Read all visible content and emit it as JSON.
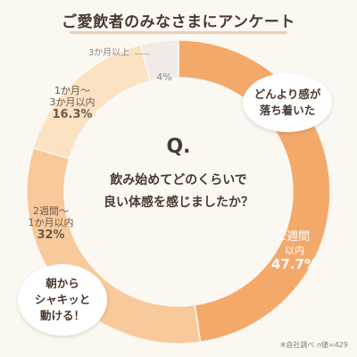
{
  "title": "ご愛飲者のみなさまにアンケート",
  "chart_data": {
    "type": "pie",
    "question_mark": "Q.",
    "question_line1": "飲み始めてどのくらいで",
    "question_line2": "良い体感を感じましたか？",
    "slices": [
      {
        "name": "2週間以内",
        "cat1": "2週間",
        "cat2": "以内",
        "value": 47.7,
        "value_label": "47.7%",
        "color": "#f3a96a"
      },
      {
        "name": "2週間〜1か月以内",
        "cat1": "2週間〜",
        "cat2": "1か月以内",
        "value": 32,
        "value_label": "32%",
        "color": "#f8c99a"
      },
      {
        "name": "1か月〜3か月以内",
        "cat1": "1か月〜",
        "cat2": "3か月以内",
        "value": 16.3,
        "value_label": "16.3%",
        "color": "#fbe2c3"
      },
      {
        "name": "3か月以上",
        "cat1": "3か月以上",
        "cat2": "",
        "value": 4,
        "value_label": "4%",
        "color": "#f0ebe6"
      }
    ]
  },
  "bubbles": {
    "top_line1": "どんより感が",
    "top_line2": "落ち着いた",
    "bottom_line1": "朝から",
    "bottom_line2": "シャキッと",
    "bottom_line3": "動ける！"
  },
  "source": "※自社調べ n値=429"
}
